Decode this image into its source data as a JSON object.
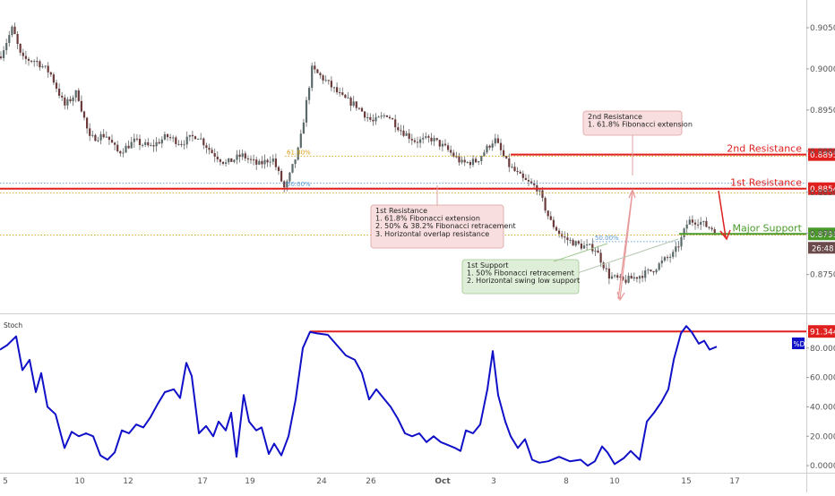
{
  "colors": {
    "up": "#5a6a6a",
    "down": "#6b3a3a",
    "wick": "#666666",
    "red_level": "#e01f1f",
    "green_level": "#4a9a2a",
    "fib_gold": "#d4a017",
    "fib_blue": "#5a9ad5",
    "stoch_line": "#1010c8",
    "callout_red_fill": "#f8dede",
    "callout_red_border": "#e0a0a0",
    "callout_green_fill": "#dfeed8",
    "callout_green_border": "#a0c890",
    "arrow_pink": "#e89a9a",
    "axis_text": "#555555",
    "grid": "#eeeeee"
  },
  "chart_data": [
    {
      "type": "candlestick",
      "y_axis_ticks": [
        "0.90500",
        "0.90000",
        "0.89500",
        "0.89000",
        "0.88500",
        "0.88000",
        "0.87500"
      ],
      "y_tick_values": [
        0.905,
        0.9,
        0.895,
        0.89,
        0.885,
        0.88,
        0.875
      ],
      "ylim": [
        0.8705,
        0.9075
      ],
      "x_ticks": [
        "5",
        "10",
        "12",
        "17",
        "19",
        "24",
        "26",
        "Oct",
        "3",
        "8",
        "10",
        "15",
        "17"
      ],
      "levels": [
        {
          "name": "2nd Resistance",
          "label": "2nd Resistance",
          "price_tag": "0.88958",
          "value": 0.88958,
          "color": "red"
        },
        {
          "name": "1st Resistance",
          "label": "1st Resistance",
          "price_tag": "0.88544",
          "value": 0.88544,
          "color": "red"
        },
        {
          "name": "Major Support",
          "label": "Major Support",
          "price_tag": "0.87994",
          "value": 0.87994,
          "color": "green"
        }
      ],
      "countdown_tag": "26:48",
      "fib_labels": [
        "61.80%",
        "50.00%",
        "50.00%"
      ],
      "fib_levels": [
        {
          "label": "61.80%",
          "value": 0.8894,
          "color": "gold"
        },
        {
          "label": "50.00%",
          "value": 0.8855,
          "color": "blue"
        },
        {
          "label": "",
          "value": 0.8861,
          "color": "blue"
        },
        {
          "label": "",
          "value": 0.8849,
          "color": "gold"
        },
        {
          "label": "50.00%",
          "value": 0.879,
          "color": "blue"
        },
        {
          "label": "",
          "value": 0.8798,
          "color": "gold"
        }
      ],
      "callouts": [
        {
          "id": "second-resistance",
          "lines": [
            "2nd Resistance",
            "1. 61.8% Fibonacci extension"
          ]
        },
        {
          "id": "first-resistance",
          "lines": [
            "1st Resistance",
            "1. 61.8% Fibonacci extension",
            "2. 50% & 38.2% Fibonacci retracement",
            "3. Horizontal overlap resistance"
          ]
        },
        {
          "id": "first-support",
          "lines": [
            "1st Support",
            "1. 50% Fibonacci retracement",
            "2. Horizontal swing low support"
          ]
        }
      ],
      "price_path": [
        [
          0,
          0.9015
        ],
        [
          14,
          0.905
        ],
        [
          24,
          0.9012
        ],
        [
          40,
          0.901
        ],
        [
          56,
          0.8995
        ],
        [
          72,
          0.8955
        ],
        [
          86,
          0.8972
        ],
        [
          100,
          0.8915
        ],
        [
          118,
          0.892
        ],
        [
          132,
          0.8898
        ],
        [
          150,
          0.8912
        ],
        [
          168,
          0.8905
        ],
        [
          186,
          0.8918
        ],
        [
          202,
          0.891
        ],
        [
          220,
          0.892
        ],
        [
          236,
          0.8899
        ],
        [
          252,
          0.8885
        ],
        [
          270,
          0.8895
        ],
        [
          288,
          0.8883
        ],
        [
          304,
          0.8892
        ],
        [
          318,
          0.8853
        ],
        [
          334,
          0.8905
        ],
        [
          348,
          0.9
        ],
        [
          364,
          0.8985
        ],
        [
          382,
          0.8965
        ],
        [
          398,
          0.8955
        ],
        [
          416,
          0.8935
        ],
        [
          432,
          0.8945
        ],
        [
          448,
          0.8925
        ],
        [
          464,
          0.8912
        ],
        [
          482,
          0.8915
        ],
        [
          498,
          0.8903
        ],
        [
          516,
          0.8885
        ],
        [
          532,
          0.8888
        ],
        [
          552,
          0.8915
        ],
        [
          566,
          0.8885
        ],
        [
          584,
          0.8865
        ],
        [
          600,
          0.8855
        ],
        [
          614,
          0.8815
        ],
        [
          628,
          0.8795
        ],
        [
          648,
          0.8785
        ],
        [
          664,
          0.8782
        ],
        [
          680,
          0.8748
        ],
        [
          696,
          0.8742
        ],
        [
          712,
          0.8748
        ],
        [
          728,
          0.8755
        ],
        [
          742,
          0.8768
        ],
        [
          752,
          0.8775
        ],
        [
          760,
          0.8792
        ],
        [
          768,
          0.8815
        ],
        [
          780,
          0.8815
        ],
        [
          790,
          0.8808
        ],
        [
          800,
          0.8804
        ]
      ]
    },
    {
      "type": "line",
      "title": "Stoch",
      "y_axis_ticks": [
        "80.0000",
        "60.0000",
        "40.0000",
        "20.0000",
        "0.0000"
      ],
      "y_tick_values": [
        80,
        60,
        40,
        20,
        0
      ],
      "ylim": [
        -3,
        100
      ],
      "level_tag": "91.3446",
      "level_value": 91.3446,
      "legend_badge": "%D",
      "series": [
        {
          "values": [
            [
              0,
              79
            ],
            [
              8,
              82
            ],
            [
              18,
              88
            ],
            [
              25,
              65
            ],
            [
              33,
              72
            ],
            [
              40,
              50
            ],
            [
              46,
              63
            ],
            [
              53,
              40
            ],
            [
              62,
              35
            ],
            [
              72,
              12
            ],
            [
              80,
              23
            ],
            [
              88,
              20
            ],
            [
              96,
              22
            ],
            [
              104,
              20
            ],
            [
              112,
              7
            ],
            [
              120,
              4
            ],
            [
              128,
              9
            ],
            [
              136,
              24
            ],
            [
              144,
              22
            ],
            [
              152,
              28
            ],
            [
              160,
              26
            ],
            [
              168,
              33
            ],
            [
              176,
              42
            ],
            [
              184,
              50
            ],
            [
              194,
              52
            ],
            [
              201,
              46
            ],
            [
              208,
              70
            ],
            [
              214,
              61
            ],
            [
              222,
              22
            ],
            [
              230,
              27
            ],
            [
              238,
              20
            ],
            [
              244,
              30
            ],
            [
              252,
              24
            ],
            [
              258,
              36
            ],
            [
              264,
              6
            ],
            [
              272,
              48
            ],
            [
              278,
              30
            ],
            [
              286,
              24
            ],
            [
              292,
              26
            ],
            [
              300,
              8
            ],
            [
              306,
              15
            ],
            [
              314,
              7
            ],
            [
              322,
              20
            ],
            [
              330,
              45
            ],
            [
              338,
              80
            ],
            [
              346,
              91
            ],
            [
              354,
              90
            ],
            [
              366,
              89
            ],
            [
              376,
              82
            ],
            [
              386,
              75
            ],
            [
              396,
              72
            ],
            [
              404,
              63
            ],
            [
              412,
              45
            ],
            [
              420,
              52
            ],
            [
              428,
              46
            ],
            [
              436,
              40
            ],
            [
              444,
              32
            ],
            [
              452,
              22
            ],
            [
              460,
              20
            ],
            [
              468,
              22
            ],
            [
              476,
              16
            ],
            [
              484,
              20
            ],
            [
              492,
              16
            ],
            [
              500,
              14
            ],
            [
              508,
              12
            ],
            [
              514,
              10
            ],
            [
              520,
              24
            ],
            [
              528,
              22
            ],
            [
              536,
              28
            ],
            [
              544,
              52
            ],
            [
              550,
              78
            ],
            [
              556,
              48
            ],
            [
              564,
              30
            ],
            [
              570,
              20
            ],
            [
              578,
              12
            ],
            [
              586,
              18
            ],
            [
              594,
              4
            ],
            [
              602,
              2
            ],
            [
              612,
              3
            ],
            [
              624,
              6
            ],
            [
              636,
              3
            ],
            [
              648,
              4
            ],
            [
              656,
              0
            ],
            [
              664,
              3
            ],
            [
              672,
              13
            ],
            [
              678,
              9
            ],
            [
              686,
              1
            ],
            [
              696,
              5
            ],
            [
              704,
              10
            ],
            [
              714,
              4
            ],
            [
              722,
              30
            ],
            [
              730,
              36
            ],
            [
              738,
              43
            ],
            [
              746,
              52
            ],
            [
              752,
              72
            ],
            [
              760,
              90
            ],
            [
              766,
              95
            ],
            [
              772,
              91
            ],
            [
              780,
              83
            ],
            [
              786,
              85
            ],
            [
              792,
              79
            ],
            [
              800,
              81
            ]
          ]
        }
      ]
    }
  ]
}
